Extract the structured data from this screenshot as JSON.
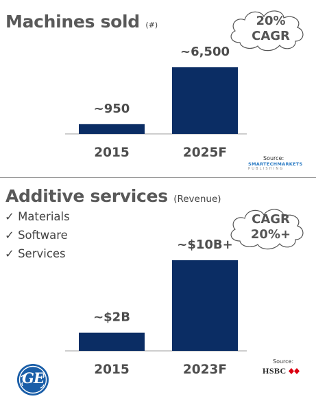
{
  "chart_data": [
    {
      "type": "bar",
      "title": "Machines sold",
      "unit": "(#)",
      "categories": [
        "2015",
        "2025F"
      ],
      "values": [
        950,
        6500
      ],
      "data_labels": [
        "~950",
        "~6,500"
      ],
      "ylim": [
        0,
        6500
      ],
      "callout": [
        "20%",
        "CAGR"
      ],
      "source_label": "Source:",
      "source_name": "SMARTECHMARKETS",
      "source_sub": "PUBLISHING",
      "bar_color": "#0b2d64"
    },
    {
      "type": "bar",
      "title": "Additive services",
      "unit": "(Revenue)",
      "categories": [
        "2015",
        "2023F"
      ],
      "values": [
        2,
        10
      ],
      "value_unit": "$B",
      "data_labels": [
        "~$2B",
        "~$10B+"
      ],
      "ylim": [
        0,
        10
      ],
      "callout": [
        "CAGR",
        "20%+"
      ],
      "source_label": "Source:",
      "source_name": "HSBC",
      "bar_color": "#0b2d64"
    }
  ],
  "checklist": [
    "✓ Materials",
    "✓ Software",
    "✓ Services"
  ],
  "logo": {
    "text": "GE",
    "color": "#1a5ea8"
  },
  "colors": {
    "bar": "#0b2d64",
    "text": "#4d4d4d",
    "hsbc_red": "#db0011"
  }
}
